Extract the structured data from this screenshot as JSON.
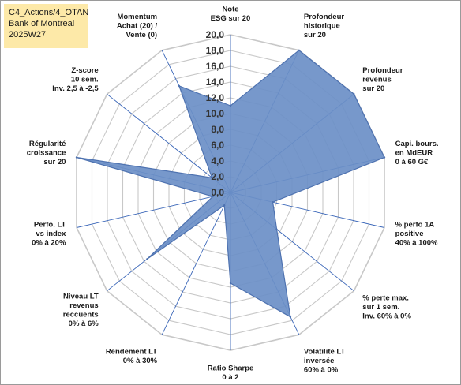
{
  "header": {
    "line1": "C4_Actions/4_OTAN",
    "line2": "Bank of Montreal",
    "line3": "2025W27"
  },
  "chart_data": {
    "type": "radar",
    "title": "",
    "rmin": 0,
    "rmax": 20,
    "tick_step": 2,
    "tick_labels": [
      "0,0",
      "2,0",
      "4,0",
      "6,0",
      "8,0",
      "10,0",
      "12,0",
      "14,0",
      "16,0",
      "18,0",
      "20,0"
    ],
    "grid": true,
    "colors": {
      "fill": "#6b8fc7",
      "stroke": "#4e72b0",
      "grid": "#c8c8c8",
      "spoke": "#3a66b8"
    },
    "axes": [
      {
        "label": [
          "Note",
          "ESG sur 20"
        ]
      },
      {
        "label": [
          "Profondeur",
          "historique",
          "sur 20"
        ]
      },
      {
        "label": [
          "Profondeur",
          "revenus",
          "sur 20"
        ]
      },
      {
        "label": [
          "Capi. bours.",
          "en MdEUR",
          "0 à 60 G€"
        ]
      },
      {
        "label": [
          "% perfo 1A",
          "positive",
          "40% à 100%"
        ]
      },
      {
        "label": [
          "% perte max.",
          "sur 1 sem.",
          "Inv. 60% à 0%"
        ]
      },
      {
        "label": [
          "Volatilité LT",
          "inversée",
          "60% à 0%"
        ]
      },
      {
        "label": [
          "Ratio Sharpe",
          "0 à 2"
        ]
      },
      {
        "label": [
          "Rendement LT",
          "0% à 30%"
        ]
      },
      {
        "label": [
          "Niveau LT",
          "revenus",
          "reccuents",
          "0% à 6%"
        ]
      },
      {
        "label": [
          "Perfo. LT",
          "vs index",
          "0% à 20%"
        ]
      },
      {
        "label": [
          "Régularité",
          "croissance",
          "sur 20"
        ]
      },
      {
        "label": [
          "Z-score",
          "10 sem.",
          "Inv. 2,5 à -2,5"
        ]
      },
      {
        "label": [
          "Momentum",
          "Achat (20) /",
          "Vente (0)"
        ]
      }
    ],
    "series": [
      {
        "values": [
          11,
          20,
          20,
          20,
          5.5,
          7.5,
          17.5,
          11.5,
          1.8,
          13.5,
          2.3,
          20,
          3,
          15
        ]
      }
    ]
  }
}
